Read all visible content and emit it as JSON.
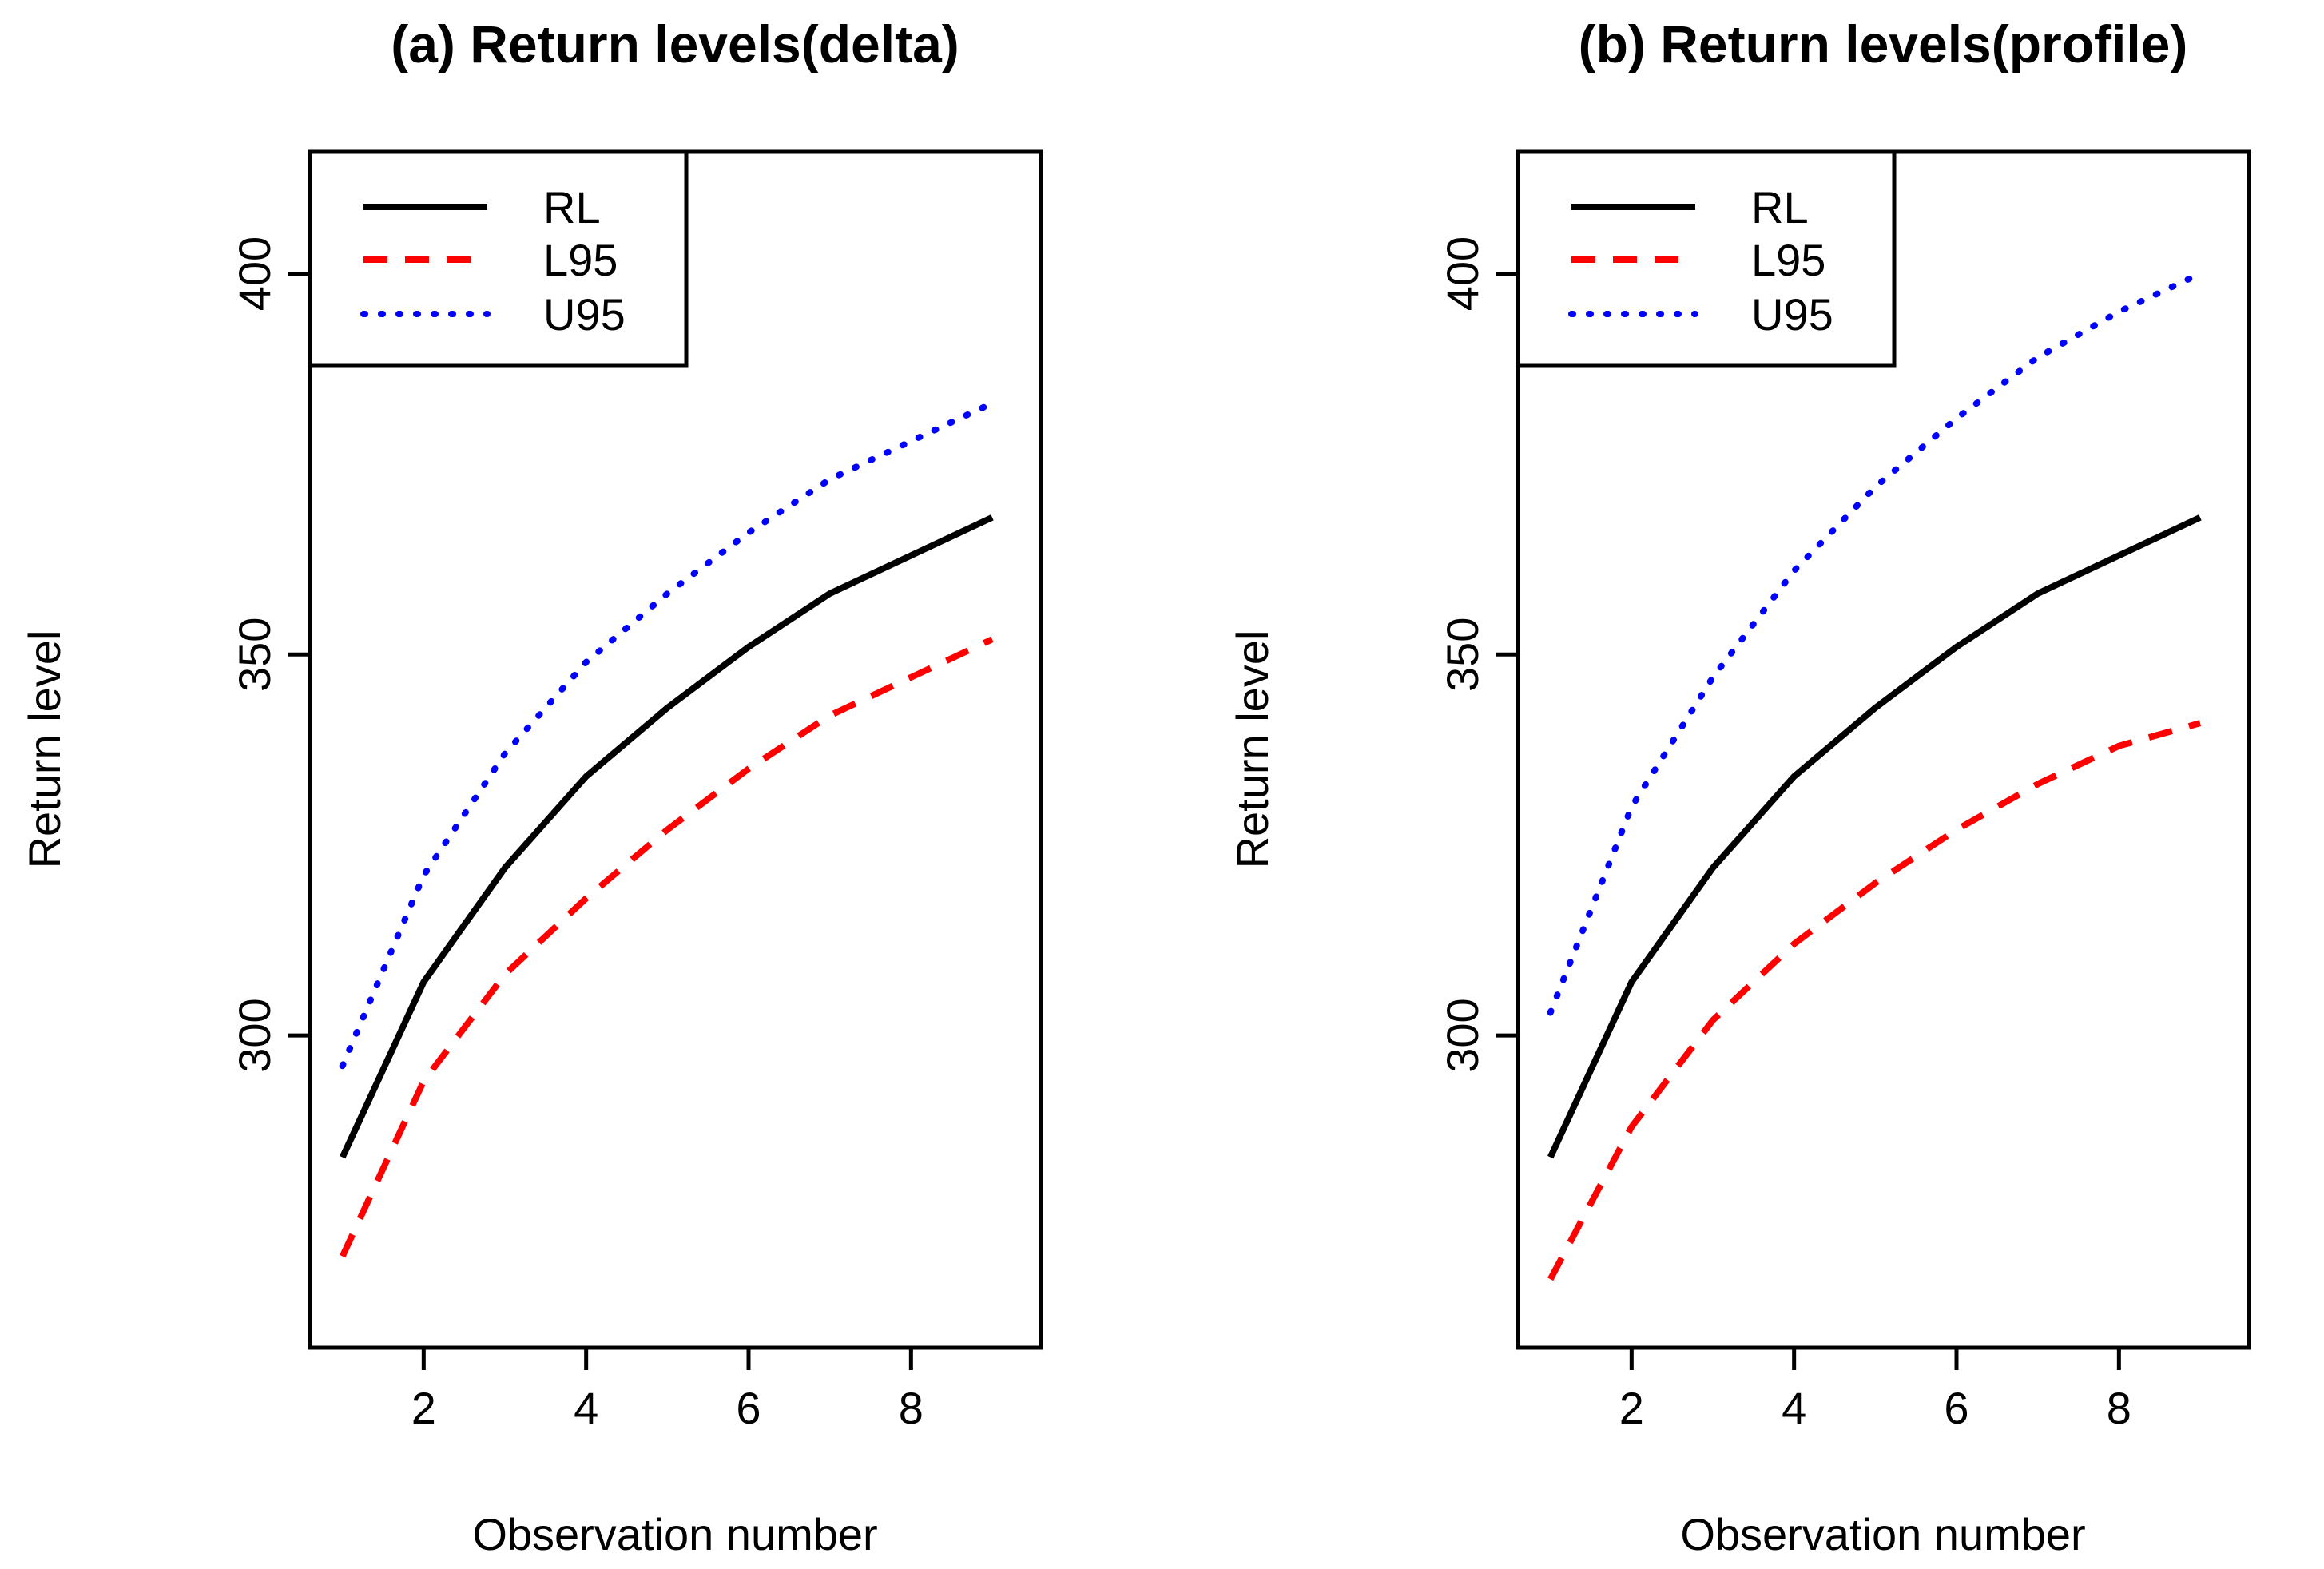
{
  "figure": {
    "panels": [
      {
        "title": "(a) Return levels(delta)",
        "xlabel": "Observation number",
        "ylabel": "Return level"
      },
      {
        "title": "(b) Return levels(profile)",
        "xlabel": "Observation number",
        "ylabel": "Return level"
      }
    ]
  },
  "chart_data": [
    {
      "type": "line",
      "title": "(a) Return levels(delta)",
      "xlabel": "Observation number",
      "ylabel": "Return level",
      "xlim": [
        0.6,
        9.6
      ],
      "ylim": [
        259,
        416
      ],
      "xticks": [
        2,
        4,
        6,
        8
      ],
      "yticks": [
        300,
        350,
        400
      ],
      "x": [
        1,
        2,
        3,
        4,
        5,
        6,
        7,
        8,
        9
      ],
      "legend_position": "top-left",
      "series": [
        {
          "name": "RL",
          "color": "#000000",
          "style": "solid",
          "values": [
            284,
            307,
            322,
            334,
            343,
            351,
            358,
            363,
            368
          ]
        },
        {
          "name": "L95",
          "color": "#ff0000",
          "style": "dashed",
          "values": [
            271,
            294,
            308,
            318,
            327,
            335,
            342,
            347,
            352
          ]
        },
        {
          "name": "U95",
          "color": "#0000ff",
          "style": "dotted",
          "values": [
            296,
            321,
            337,
            349,
            358,
            366,
            373,
            378,
            383
          ]
        }
      ]
    },
    {
      "type": "line",
      "title": "(b) Return levels(profile)",
      "xlabel": "Observation number",
      "ylabel": "Return level",
      "xlim": [
        0.6,
        9.6
      ],
      "ylim": [
        259,
        416
      ],
      "xticks": [
        2,
        4,
        6,
        8
      ],
      "yticks": [
        300,
        350,
        400
      ],
      "x": [
        1,
        2,
        3,
        4,
        5,
        6,
        7,
        8,
        9
      ],
      "legend_position": "top-left",
      "series": [
        {
          "name": "RL",
          "color": "#000000",
          "style": "solid",
          "values": [
            284,
            307,
            322,
            334,
            343,
            351,
            358,
            363,
            368
          ]
        },
        {
          "name": "L95",
          "color": "#ff0000",
          "style": "dashed",
          "values": [
            268,
            288,
            302,
            312,
            320,
            327,
            333,
            338,
            341
          ]
        },
        {
          "name": "U95",
          "color": "#0000ff",
          "style": "dotted",
          "values": [
            303,
            330,
            347,
            361,
            372,
            381,
            389,
            395,
            400
          ]
        }
      ]
    }
  ]
}
